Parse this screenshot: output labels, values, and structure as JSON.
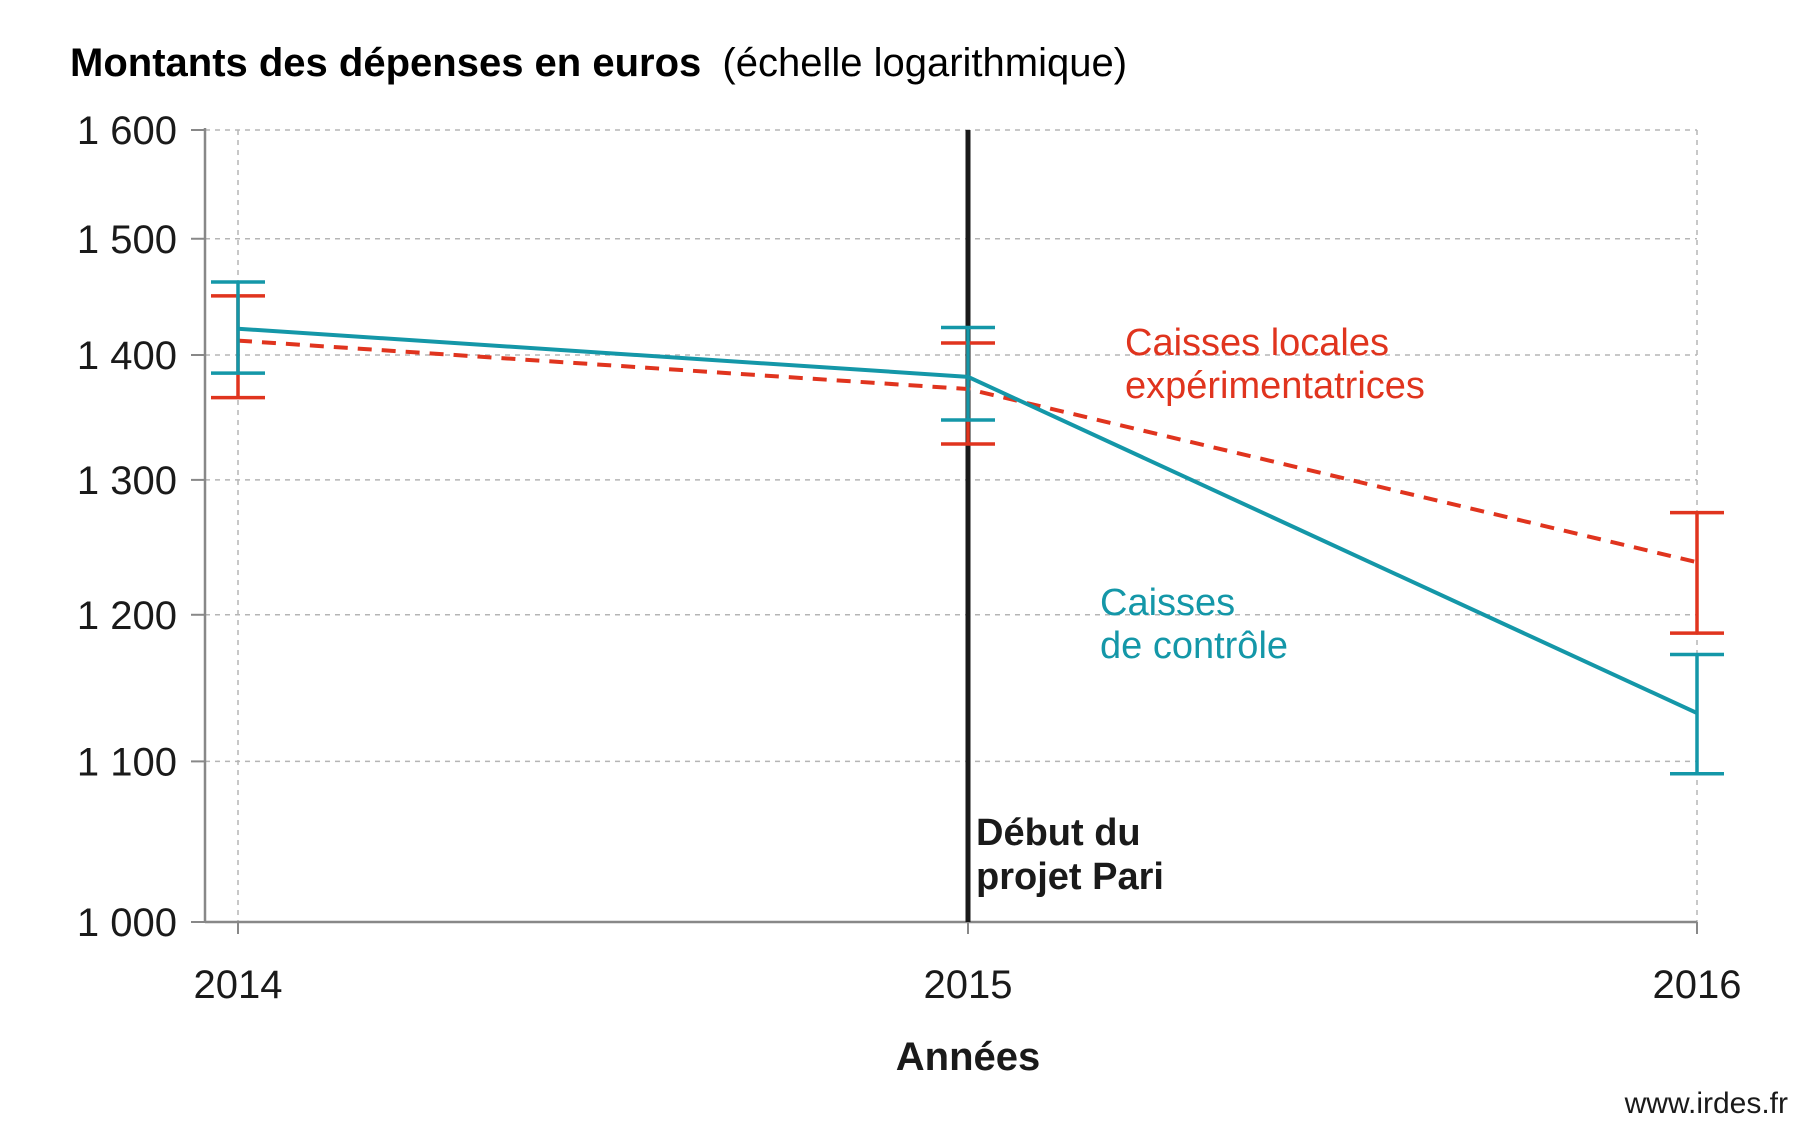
{
  "chart_data": {
    "type": "line",
    "title_bold": "Montants des dépenses en euros",
    "title_note": "(échelle logarithmique)",
    "xlabel": "Années",
    "y_scale": "log",
    "ylim": [
      1000,
      1600
    ],
    "grid": true,
    "categories": [
      "2014",
      "2015",
      "2016"
    ],
    "y_ticks": [
      1000,
      1100,
      1200,
      1300,
      1400,
      1500,
      1600
    ],
    "y_tick_labels": [
      "1 000",
      "1 100",
      "1 200",
      "1 300",
      "1 400",
      "1 500",
      "1 600"
    ],
    "event": {
      "x": "2015",
      "label_lines": [
        "Début du",
        "projet Pari"
      ],
      "color": "#1a1a1a"
    },
    "series": [
      {
        "name_lines": [
          "Caisses locales",
          "expérimentatrices"
        ],
        "color": "#e0341e",
        "dashed": true,
        "values": [
          1412,
          1372,
          1238
        ],
        "err_low": [
          1365,
          1328,
          1187
        ],
        "err_high": [
          1450,
          1410,
          1275
        ]
      },
      {
        "name_lines": [
          "Caisses",
          "de contrôle"
        ],
        "color": "#1497a8",
        "dashed": false,
        "values": [
          1422,
          1382,
          1132
        ],
        "err_low": [
          1385,
          1347,
          1092
        ],
        "err_high": [
          1462,
          1423,
          1172
        ]
      }
    ]
  },
  "source": "www.irdes.fr"
}
